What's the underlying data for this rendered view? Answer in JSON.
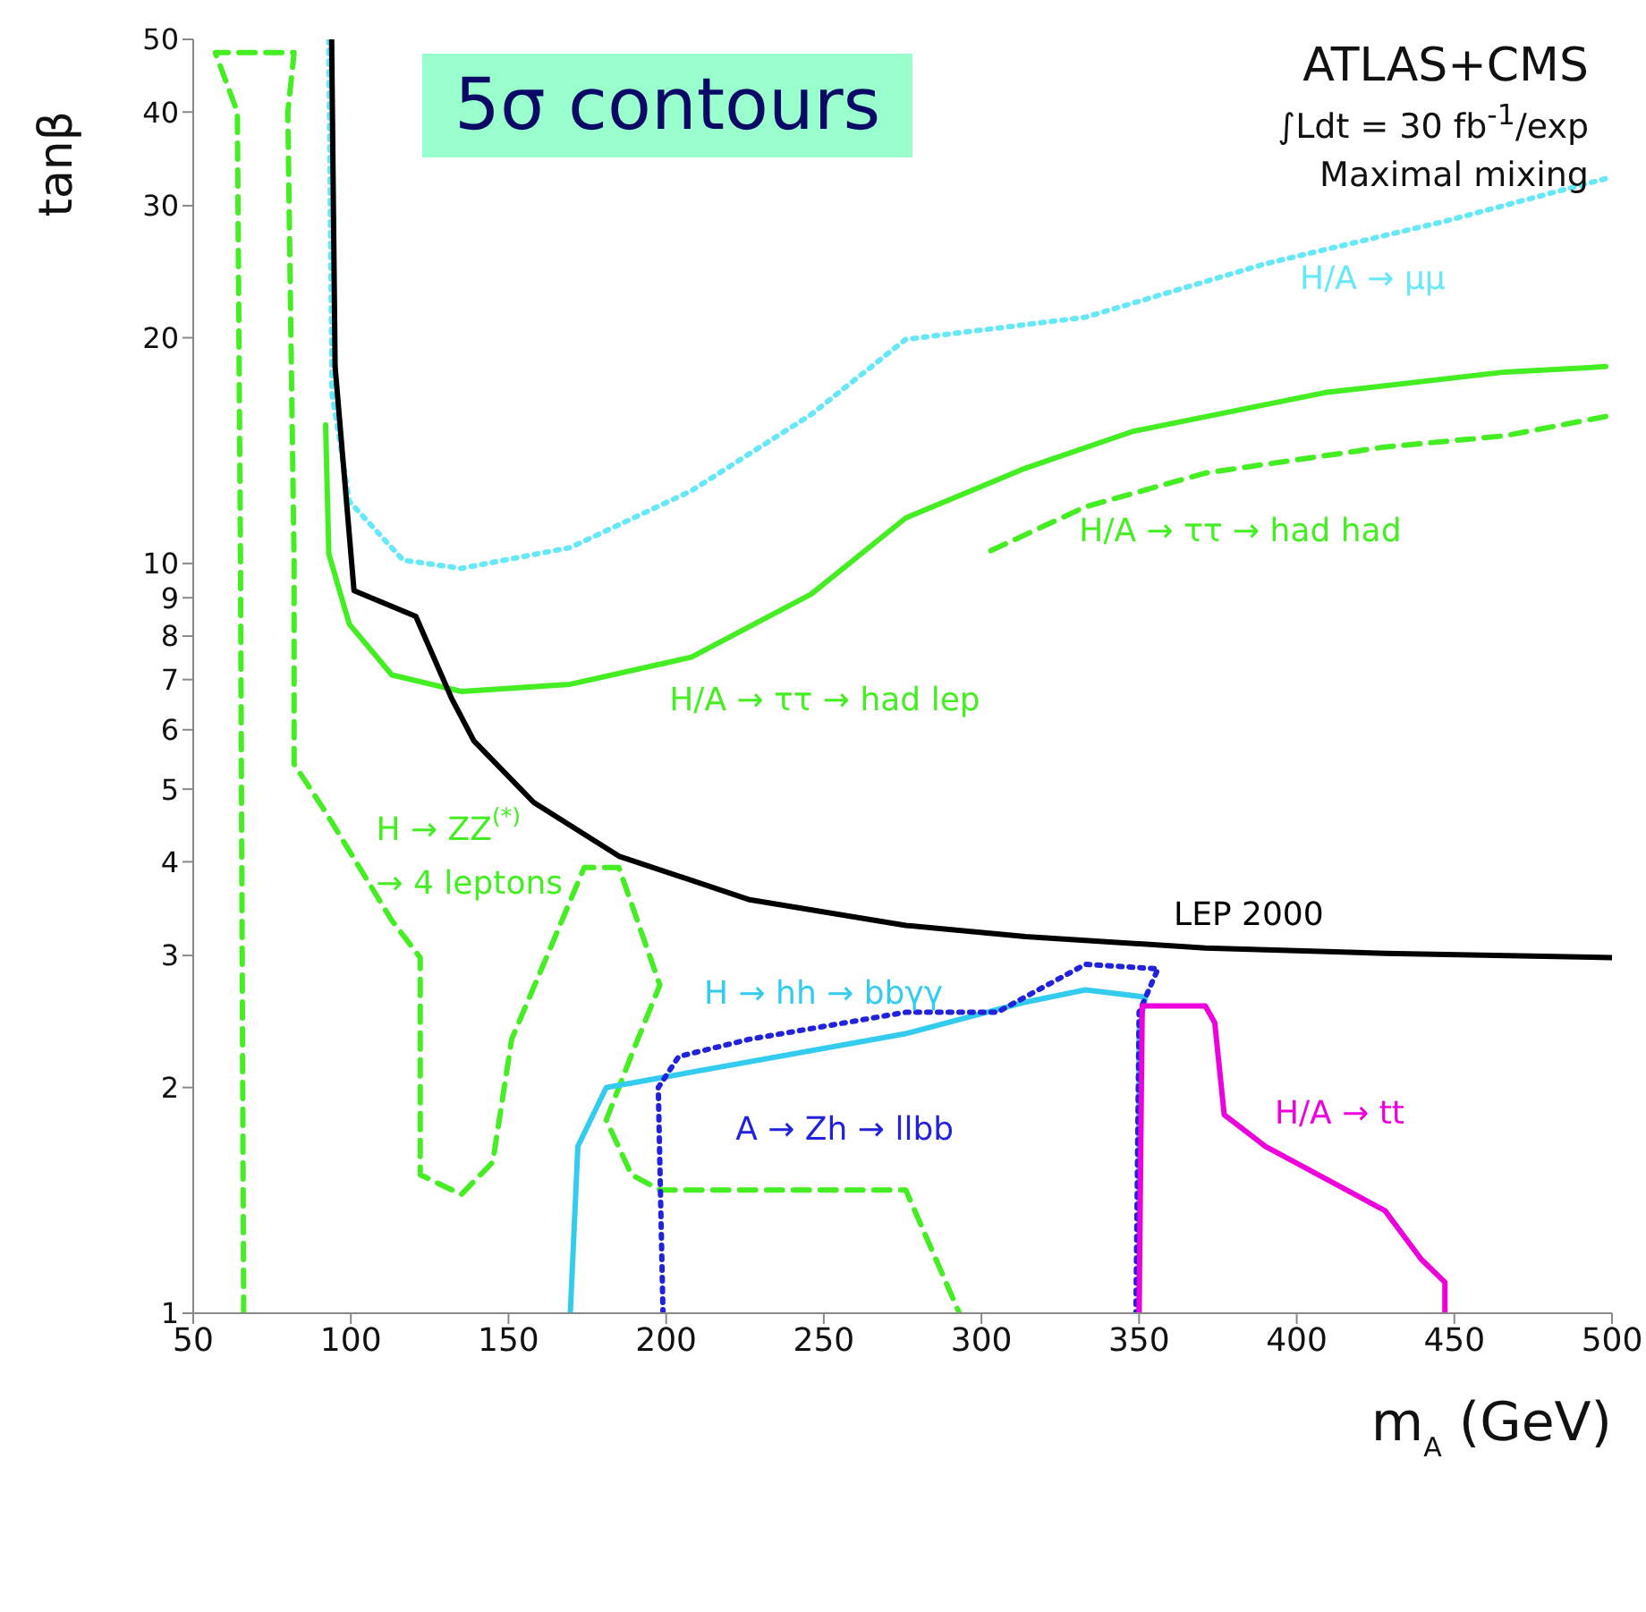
{
  "chart_data": {
    "type": "line",
    "title": "5σ contours",
    "annotations": [
      "ATLAS+CMS",
      "∫Ldt = 30 fb$^{-1}$/exp",
      "Maximal mixing"
    ],
    "xlabel": "m$_{A}$ (GeV)",
    "ylabel": "tanβ",
    "log": "y",
    "xlim": [
      50,
      500
    ],
    "xticks": [
      50,
      100,
      150,
      200,
      250,
      300,
      350,
      400,
      450,
      500
    ],
    "ylim": [
      1,
      50
    ],
    "yticks": [
      1,
      2,
      3,
      4,
      5,
      6,
      7,
      8,
      9,
      10,
      20,
      30,
      40,
      50
    ],
    "grid": false,
    "marker": "none",
    "series": [
      {
        "name": "H/A → μμ",
        "color": "#66e8f8",
        "line_style": "dotted",
        "x": [
          93,
          94,
          99.5,
          116.6,
          135,
          169.6,
          208,
          246,
          276,
          333,
          390,
          447,
          498
        ],
        "values": [
          50,
          16.9,
          12.1,
          10.1,
          9.85,
          10.5,
          12.5,
          15.8,
          19.9,
          21.3,
          25.1,
          28.6,
          32.6
        ]
      },
      {
        "name": "H/A → ττ → had had",
        "color": "#44ee22",
        "line_style": "dashed",
        "x": [
          303,
          333,
          371,
          428,
          466,
          498
        ],
        "values": [
          10.4,
          11.9,
          13.2,
          14.3,
          14.8,
          15.7
        ]
      },
      {
        "name": "H/A → ττ → had lep",
        "color": "#44ee22",
        "line_style": "solid",
        "x": [
          92,
          93,
          99.5,
          113,
          135,
          169.6,
          208,
          246,
          276,
          314,
          348,
          409,
          466,
          498
        ],
        "values": [
          15.3,
          10.3,
          8.3,
          7.1,
          6.75,
          6.9,
          7.5,
          9.1,
          11.5,
          13.4,
          15,
          16.9,
          18,
          18.3
        ]
      },
      {
        "name": "H → ZZ$^{(*)}$ → 4 leptons",
        "color": "#44ee22",
        "line_style": "dashed",
        "x": [
          66,
          65,
          64,
          57,
          82,
          80,
          82,
          82,
          92,
          113,
          122,
          122,
          135,
          145,
          151,
          162,
          174,
          185,
          198,
          189,
          181,
          189,
          198,
          276,
          293
        ],
        "values": [
          1,
          10,
          40,
          48,
          48,
          40,
          10,
          5.4,
          4.66,
          3.34,
          2.98,
          1.53,
          1.44,
          1.59,
          2.32,
          2.98,
          3.93,
          3.93,
          2.74,
          2.21,
          1.81,
          1.53,
          1.46,
          1.46,
          1
        ]
      },
      {
        "name": "LEP 2000",
        "color": "#000000",
        "line_style": "solid",
        "x": [
          93.9,
          95,
          101,
          120.6,
          132,
          139,
          158,
          185,
          226.5,
          276,
          314,
          371,
          428,
          500
        ],
        "values": [
          50,
          18.3,
          9.2,
          8.5,
          6.6,
          5.8,
          4.8,
          4.07,
          3.56,
          3.29,
          3.18,
          3.07,
          3.02,
          2.98
        ]
      },
      {
        "name": "H → hh → bbγγ",
        "color": "#33ccee",
        "line_style": "solid",
        "x": [
          169.6,
          172,
          181,
          198,
          276,
          314,
          333,
          352,
          350,
          350
        ],
        "values": [
          1,
          1.67,
          2,
          2.06,
          2.36,
          2.6,
          2.7,
          2.64,
          2.39,
          1
        ]
      },
      {
        "name": "A → Zh → llbb",
        "color": "#2222dd",
        "line_style": "dotted",
        "x": [
          199,
          197.5,
          204,
          226.5,
          276,
          305,
          333,
          356,
          350,
          349
        ],
        "values": [
          1,
          2,
          2.2,
          2.32,
          2.52,
          2.52,
          2.92,
          2.88,
          2.52,
          1
        ]
      },
      {
        "name": "H/A → tt",
        "color": "#ee00dd",
        "line_style": "solid",
        "x": [
          350,
          351,
          371,
          374,
          377,
          390,
          428,
          439.5,
          447,
          447
        ],
        "values": [
          1,
          2.57,
          2.57,
          2.44,
          1.84,
          1.67,
          1.37,
          1.18,
          1.1,
          1
        ]
      }
    ]
  }
}
